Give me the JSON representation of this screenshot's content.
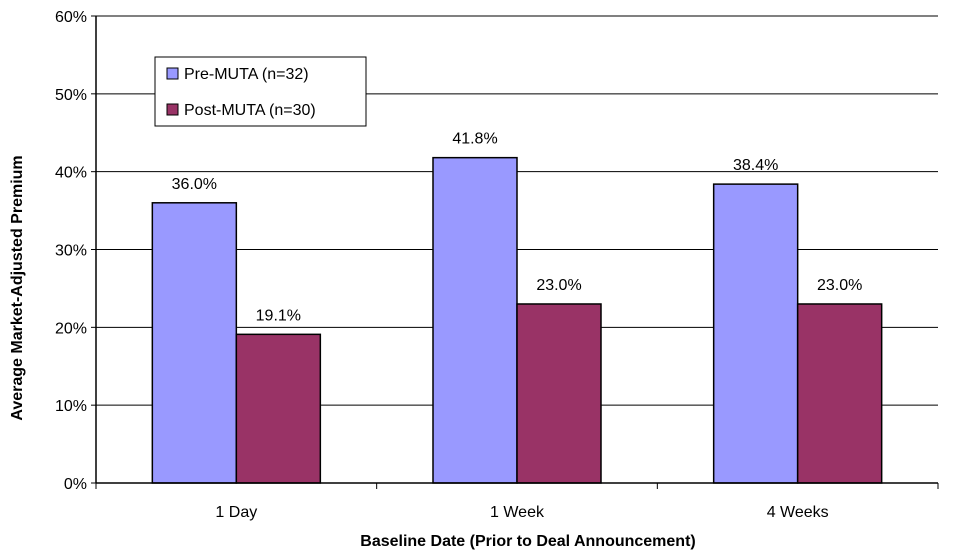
{
  "chart_data": {
    "type": "bar",
    "title": "",
    "xlabel": "Baseline Date (Prior to Deal Announcement)",
    "ylabel": "Average Market-Adjusted Premium",
    "categories": [
      "1 Day",
      "1 Week",
      "4 Weeks"
    ],
    "series": [
      {
        "name": "Pre-MUTA (n=32)",
        "values": [
          36.0,
          41.8,
          38.4
        ],
        "labels": [
          "36.0%",
          "41.8%",
          "38.4%"
        ],
        "color": "#9999ff"
      },
      {
        "name": "Post-MUTA (n=30)",
        "values": [
          19.1,
          23.0,
          23.0
        ],
        "labels": [
          "19.1%",
          "23.0%",
          "23.0%"
        ],
        "color": "#993366"
      }
    ],
    "ylim": [
      0,
      60
    ],
    "yticks": [
      "0%",
      "10%",
      "20%",
      "30%",
      "40%",
      "50%",
      "60%"
    ],
    "grid": true,
    "legend_position": "top-left"
  }
}
